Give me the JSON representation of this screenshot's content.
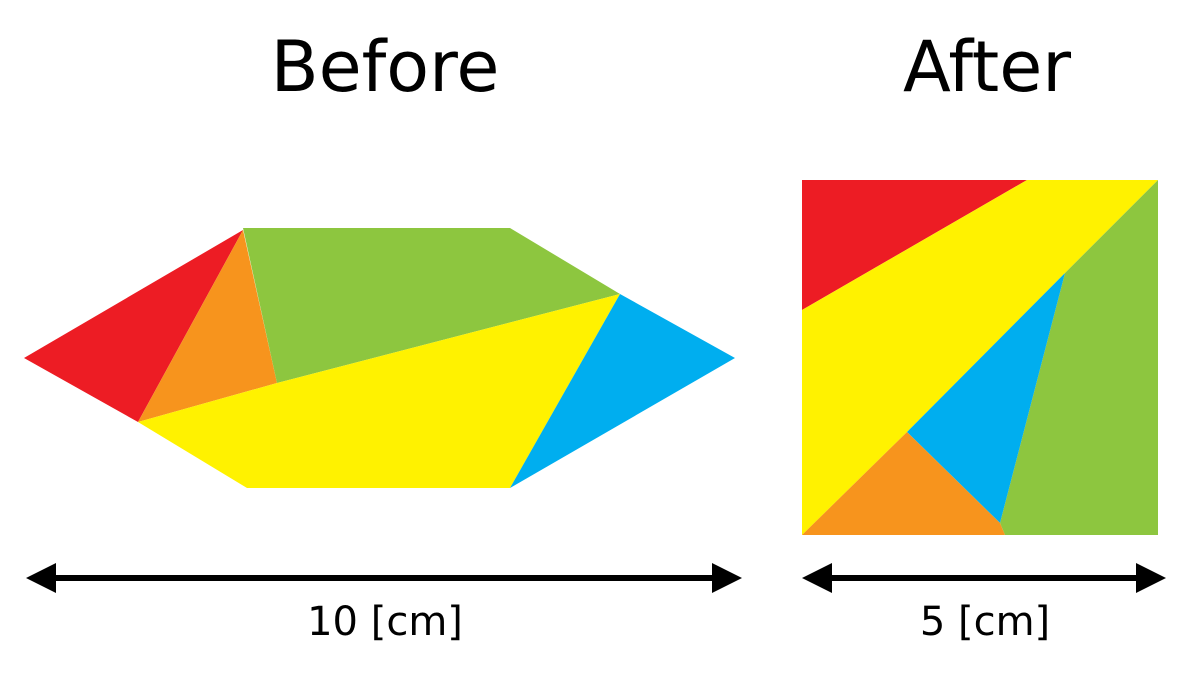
{
  "before": {
    "title": "Before",
    "dimension": "10 [cm]"
  },
  "after": {
    "title": "After",
    "dimension": "5 [cm]"
  }
}
